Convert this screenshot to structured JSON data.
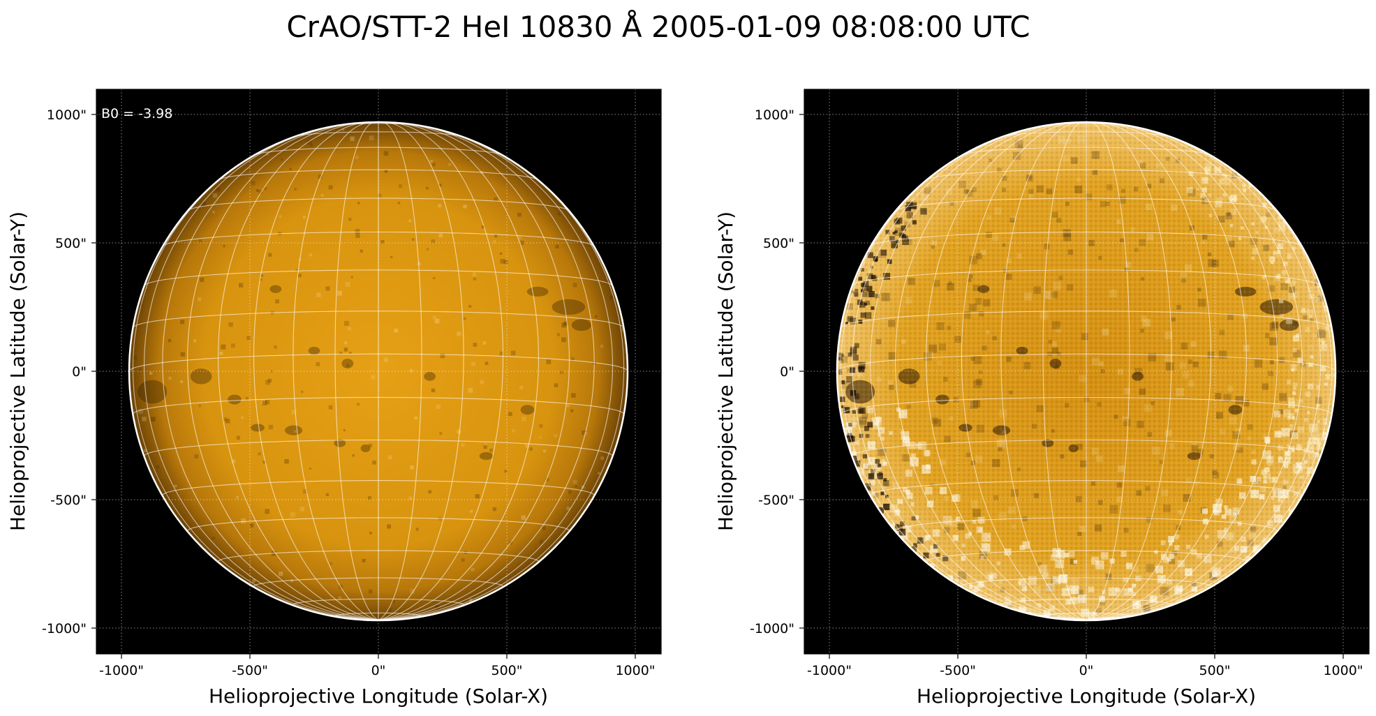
{
  "title": "CrAO/STT-2 HeI 10830 Å 2005-01-09 08:08:00 UTC",
  "colors": {
    "background": "#000000",
    "disk_center": "#e6a015",
    "disk_limb": "#6b4205",
    "grid": "#ffffff"
  },
  "panels": [
    {
      "name": "left",
      "rendering": "smooth",
      "annotation": "B0 = -3.98",
      "xlabel": "Helioprojective Longitude (Solar-X)",
      "ylabel": "Helioprojective Latitude (Solar-Y)",
      "xticks": [
        "-1000\"",
        "-500\"",
        "0\"",
        "500\"",
        "1000\""
      ],
      "yticks": [
        "1000\"",
        "500\"",
        "0\"",
        "-500\"",
        "-1000\""
      ]
    },
    {
      "name": "right",
      "rendering": "pixelated",
      "annotation": "",
      "xlabel": "Helioprojective Longitude (Solar-X)",
      "ylabel": "Helioprojective Latitude (Solar-Y)",
      "xticks": [
        "-1000\"",
        "-500\"",
        "0\"",
        "500\"",
        "1000\""
      ],
      "yticks": [
        "1000\"",
        "500\"",
        "0\"",
        "-500\"",
        "-1000\""
      ]
    }
  ]
}
